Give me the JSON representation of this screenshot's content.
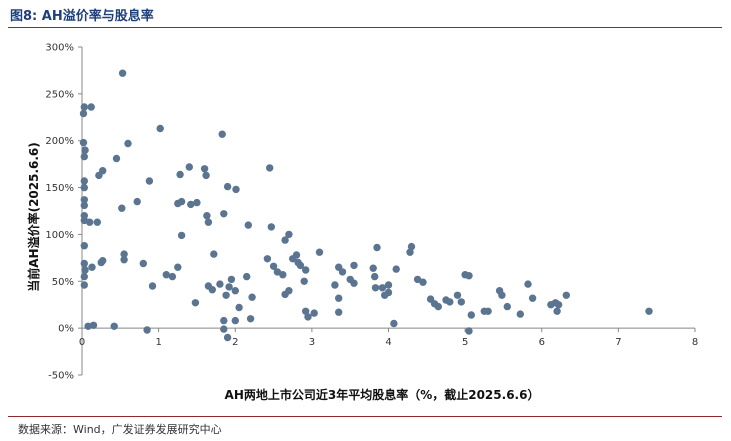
{
  "figure": {
    "title": "图8:  AH溢价率与股息率",
    "source": "数据来源：Wind，广发证券发展研究中心"
  },
  "colors": {
    "point": "#5b7591",
    "axis": "#888888",
    "rule": "#8f2a2a"
  },
  "chart_data": {
    "type": "scatter",
    "title": "",
    "xlabel": "AH两地上市公司近3年平均股息率（%，截止2025.6.6）",
    "ylabel": "当前AH溢价率(2025.6.6)",
    "xlim": [
      0,
      8
    ],
    "ylim": [
      -50,
      300
    ],
    "x_ticks": [
      0,
      1,
      2,
      3,
      4,
      5,
      6,
      7,
      8
    ],
    "y_ticks": [
      -50,
      0,
      50,
      100,
      150,
      200,
      250,
      300
    ],
    "x_tick_labels": [
      "0",
      "1",
      "2",
      "3",
      "4",
      "5",
      "6",
      "7",
      "8"
    ],
    "y_tick_labels": [
      "-50%",
      "0%",
      "50%",
      "100%",
      "150%",
      "200%",
      "250%",
      "300%"
    ],
    "grid": false,
    "legend": "none",
    "points": [
      [
        0.03,
        236
      ],
      [
        0.02,
        229
      ],
      [
        0.12,
        236
      ],
      [
        0.53,
        272
      ],
      [
        0.02,
        198
      ],
      [
        0.04,
        190
      ],
      [
        0.03,
        183
      ],
      [
        0.6,
        197
      ],
      [
        0.27,
        168
      ],
      [
        0.22,
        163
      ],
      [
        0.45,
        181
      ],
      [
        1.02,
        213
      ],
      [
        1.83,
        207
      ],
      [
        0.03,
        157
      ],
      [
        0.03,
        150
      ],
      [
        0.03,
        137
      ],
      [
        0.03,
        131
      ],
      [
        0.52,
        128
      ],
      [
        0.88,
        157
      ],
      [
        1.28,
        164
      ],
      [
        1.4,
        172
      ],
      [
        1.6,
        170
      ],
      [
        1.62,
        163
      ],
      [
        2.45,
        171
      ],
      [
        1.9,
        151
      ],
      [
        2.01,
        148
      ],
      [
        0.03,
        120
      ],
      [
        0.03,
        115
      ],
      [
        0.1,
        113
      ],
      [
        0.2,
        113
      ],
      [
        0.72,
        135
      ],
      [
        1.25,
        133
      ],
      [
        1.3,
        135
      ],
      [
        1.42,
        132
      ],
      [
        1.5,
        134
      ],
      [
        1.63,
        120
      ],
      [
        1.65,
        113
      ],
      [
        1.85,
        122
      ],
      [
        2.17,
        110
      ],
      [
        2.47,
        108
      ],
      [
        2.7,
        100
      ],
      [
        2.65,
        94
      ],
      [
        0.03,
        88
      ],
      [
        0.55,
        79
      ],
      [
        0.55,
        73
      ],
      [
        0.03,
        69
      ],
      [
        0.04,
        62
      ],
      [
        0.03,
        55
      ],
      [
        0.03,
        46
      ],
      [
        0.13,
        65
      ],
      [
        0.25,
        70
      ],
      [
        0.27,
        72
      ],
      [
        0.8,
        69
      ],
      [
        0.92,
        45
      ],
      [
        1.1,
        57
      ],
      [
        1.18,
        55
      ],
      [
        1.25,
        65
      ],
      [
        1.3,
        99
      ],
      [
        1.48,
        27
      ],
      [
        1.65,
        45
      ],
      [
        1.7,
        41
      ],
      [
        1.72,
        79
      ],
      [
        1.8,
        47
      ],
      [
        1.92,
        44
      ],
      [
        1.95,
        52
      ],
      [
        1.88,
        35
      ],
      [
        2.0,
        40
      ],
      [
        2.15,
        55
      ],
      [
        2.05,
        22
      ],
      [
        2.22,
        33
      ],
      [
        2.42,
        74
      ],
      [
        2.5,
        66
      ],
      [
        2.55,
        60
      ],
      [
        2.62,
        57
      ],
      [
        2.65,
        36
      ],
      [
        2.7,
        40
      ],
      [
        2.75,
        74
      ],
      [
        2.8,
        78
      ],
      [
        2.82,
        70
      ],
      [
        2.85,
        67
      ],
      [
        2.9,
        50
      ],
      [
        2.92,
        62
      ],
      [
        2.92,
        18
      ],
      [
        2.95,
        12
      ],
      [
        3.03,
        16
      ],
      [
        3.1,
        81
      ],
      [
        3.3,
        46
      ],
      [
        3.35,
        65
      ],
      [
        3.35,
        32
      ],
      [
        3.35,
        17
      ],
      [
        3.4,
        60
      ],
      [
        3.55,
        48
      ],
      [
        3.55,
        67
      ],
      [
        3.5,
        52
      ],
      [
        3.8,
        64
      ],
      [
        3.82,
        55
      ],
      [
        3.83,
        43
      ],
      [
        3.85,
        86
      ],
      [
        3.92,
        43
      ],
      [
        3.95,
        35
      ],
      [
        4.0,
        38
      ],
      [
        4.0,
        46
      ],
      [
        4.1,
        63
      ],
      [
        4.07,
        5
      ],
      [
        4.28,
        81
      ],
      [
        4.38,
        52
      ],
      [
        4.3,
        87
      ],
      [
        4.45,
        49
      ],
      [
        4.55,
        31
      ],
      [
        4.6,
        26
      ],
      [
        4.65,
        23
      ],
      [
        4.75,
        30
      ],
      [
        4.8,
        28
      ],
      [
        4.9,
        35
      ],
      [
        4.95,
        28
      ],
      [
        5.0,
        57
      ],
      [
        5.05,
        56
      ],
      [
        5.05,
        -3
      ],
      [
        5.08,
        14
      ],
      [
        5.25,
        18
      ],
      [
        5.3,
        18
      ],
      [
        5.45,
        40
      ],
      [
        5.48,
        35
      ],
      [
        5.55,
        23
      ],
      [
        5.72,
        15
      ],
      [
        5.82,
        47
      ],
      [
        5.88,
        32
      ],
      [
        6.12,
        25
      ],
      [
        6.18,
        27
      ],
      [
        6.22,
        25
      ],
      [
        6.2,
        18
      ],
      [
        6.32,
        35
      ],
      [
        7.4,
        18
      ],
      [
        0.15,
        3
      ],
      [
        0.08,
        2
      ],
      [
        0.42,
        2
      ],
      [
        0.85,
        -2
      ],
      [
        1.85,
        -1
      ],
      [
        1.9,
        -10
      ],
      [
        2.0,
        8
      ],
      [
        1.85,
        8
      ],
      [
        2.2,
        10
      ]
    ]
  }
}
